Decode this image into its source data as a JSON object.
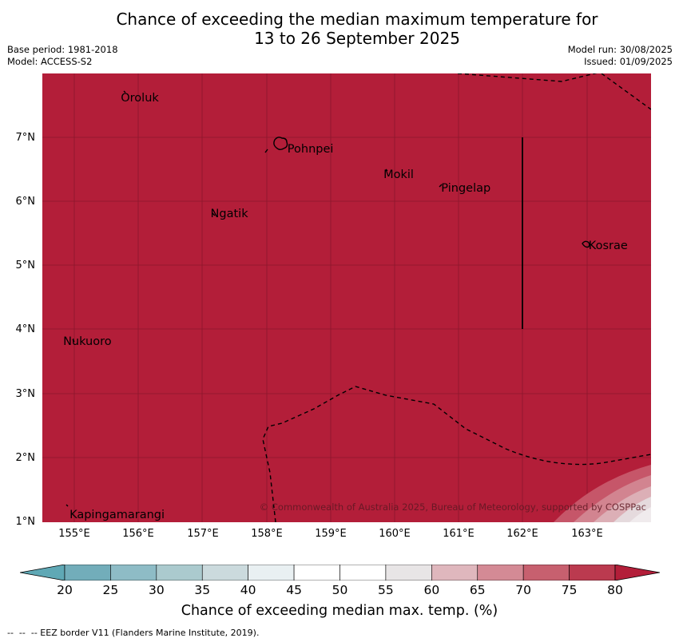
{
  "title_line1": "Chance of exceeding the median maximum temperature for",
  "title_line2": "13 to 26 September 2025",
  "meta": {
    "base_period": "Base period: 1981-2018",
    "model": "Model: ACCESS-S2",
    "model_run": "Model run: 30/08/2025",
    "issued": "Issued: 01/09/2025"
  },
  "map": {
    "fill_color": "#b31e39",
    "lon_range": [
      154.5,
      164.0
    ],
    "lat_range": [
      1.0,
      8.0
    ],
    "lat_ticks": [
      "7°N",
      "6°N",
      "5°N",
      "4°N",
      "3°N",
      "2°N",
      "1°N"
    ],
    "lon_ticks": [
      "155°E",
      "156°E",
      "157°E",
      "158°E",
      "159°E",
      "160°E",
      "161°E",
      "162°E",
      "163°E"
    ],
    "places": [
      {
        "name": "Oroluk",
        "lon": 155.7,
        "lat": 7.6
      },
      {
        "name": "Pohnpei",
        "lon": 158.3,
        "lat": 6.8
      },
      {
        "name": "Mokil",
        "lon": 159.8,
        "lat": 6.4
      },
      {
        "name": "Pingelap",
        "lon": 160.7,
        "lat": 6.2
      },
      {
        "name": "Ngatik",
        "lon": 157.1,
        "lat": 5.8
      },
      {
        "name": "Kosrae",
        "lon": 163.0,
        "lat": 5.3
      },
      {
        "name": "Nukuoro",
        "lon": 154.8,
        "lat": 3.8
      },
      {
        "name": "Kapingamarangi",
        "lon": 154.9,
        "lat": 1.1
      }
    ],
    "copyright": "© Commonwealth of Australia 2025, Bureau of Meteorology, supported by COSPPac"
  },
  "colorbar": {
    "ticks": [
      "20",
      "25",
      "30",
      "35",
      "40",
      "45",
      "50",
      "55",
      "60",
      "65",
      "70",
      "75",
      "80"
    ],
    "colors": [
      "#5fa8b5",
      "#72adba",
      "#8ebcc6",
      "#abcace",
      "#cbdadd",
      "#e9f0f2",
      "#ffffff",
      "#ffffff",
      "#e8e5e6",
      "#dfb7bd",
      "#d48a95",
      "#c7606f",
      "#bb3a4f",
      "#b31e39"
    ],
    "label": "Chance of exceeding median max. temp. (%)"
  },
  "footer": "--  --  -- EEZ border V11 (Flanders Marine Institute, 2019)."
}
